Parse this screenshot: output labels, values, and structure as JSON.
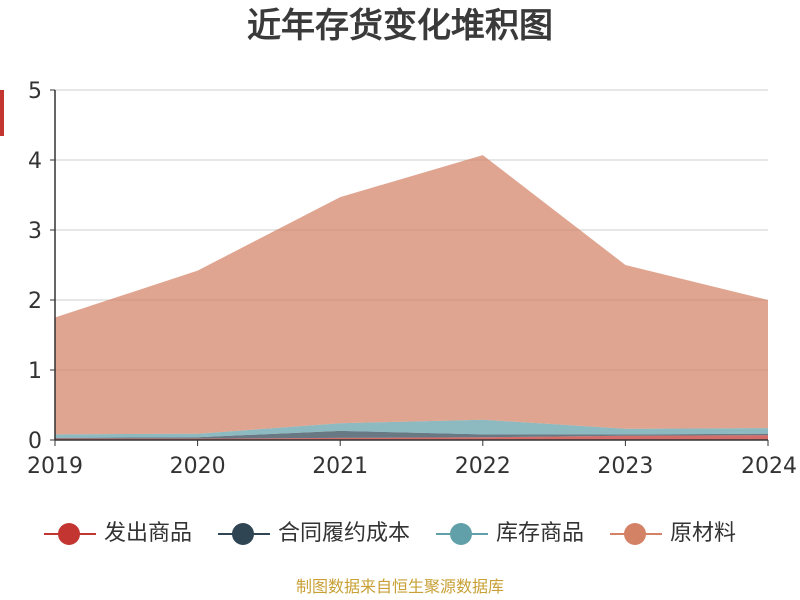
{
  "chart_data": {
    "type": "area",
    "stacked": true,
    "title": "近年存货变化堆积图",
    "x": [
      "2019",
      "2020",
      "2021",
      "2022",
      "2023",
      "2024"
    ],
    "ylim": [
      0,
      5
    ],
    "yticks": [
      "0",
      "1",
      "2",
      "3",
      "4",
      "5"
    ],
    "grid": true,
    "legend_position": "bottom",
    "series": [
      {
        "name": "发出商品",
        "color": "#c23531",
        "values": [
          0.02,
          0.02,
          0.03,
          0.04,
          0.06,
          0.07
        ]
      },
      {
        "name": "合同履约成本",
        "color": "#2f4554",
        "values": [
          0.01,
          0.02,
          0.1,
          0.04,
          0.02,
          0.02
        ]
      },
      {
        "name": "库存商品",
        "color": "#61a0a8",
        "values": [
          0.05,
          0.05,
          0.11,
          0.21,
          0.08,
          0.08
        ]
      },
      {
        "name": "原材料",
        "color": "#d48265",
        "values": [
          1.67,
          2.33,
          3.23,
          3.78,
          2.34,
          1.83
        ]
      }
    ]
  },
  "colors": {
    "axis": "#333333",
    "grid": "#cccccc",
    "ylabel_mark": "#c23531",
    "source_text": "#c8a036"
  },
  "source_note": "制图数据来自恒生聚源数据库"
}
